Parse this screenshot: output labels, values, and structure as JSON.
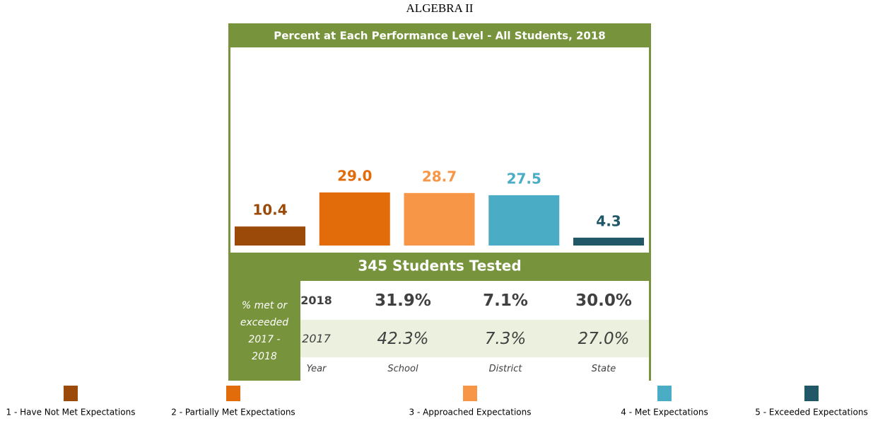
{
  "chart_data": {
    "type": "bar",
    "title": "ALGEBRA II",
    "subtitle": "Percent at Each Performance Level - All Students, 2018",
    "categories": [
      "1 - Have Not Met Expectations",
      "2 - Partially Met Expectations",
      "3 - Approached Expectations",
      "4 - Met Expectations",
      "5 - Exceeded Expectations"
    ],
    "values": [
      10.4,
      29.0,
      28.7,
      27.5,
      4.3
    ],
    "value_labels": [
      "10.4",
      "29.0",
      "28.7",
      "27.5",
      "4.3"
    ],
    "colors": [
      "#9c4a0a",
      "#e36c0a",
      "#f79646",
      "#4bacc6",
      "#215868"
    ],
    "note": "345 Students Tested"
  },
  "table": {
    "side_label": "% met or exceeded 2017 - 2018",
    "columns": [
      "Year",
      "School",
      "District",
      "State"
    ],
    "rows": [
      [
        "2018",
        "31.9%",
        "7.1%",
        "30.0%"
      ],
      [
        "2017",
        "42.3%",
        "7.3%",
        "27.0%"
      ]
    ]
  }
}
